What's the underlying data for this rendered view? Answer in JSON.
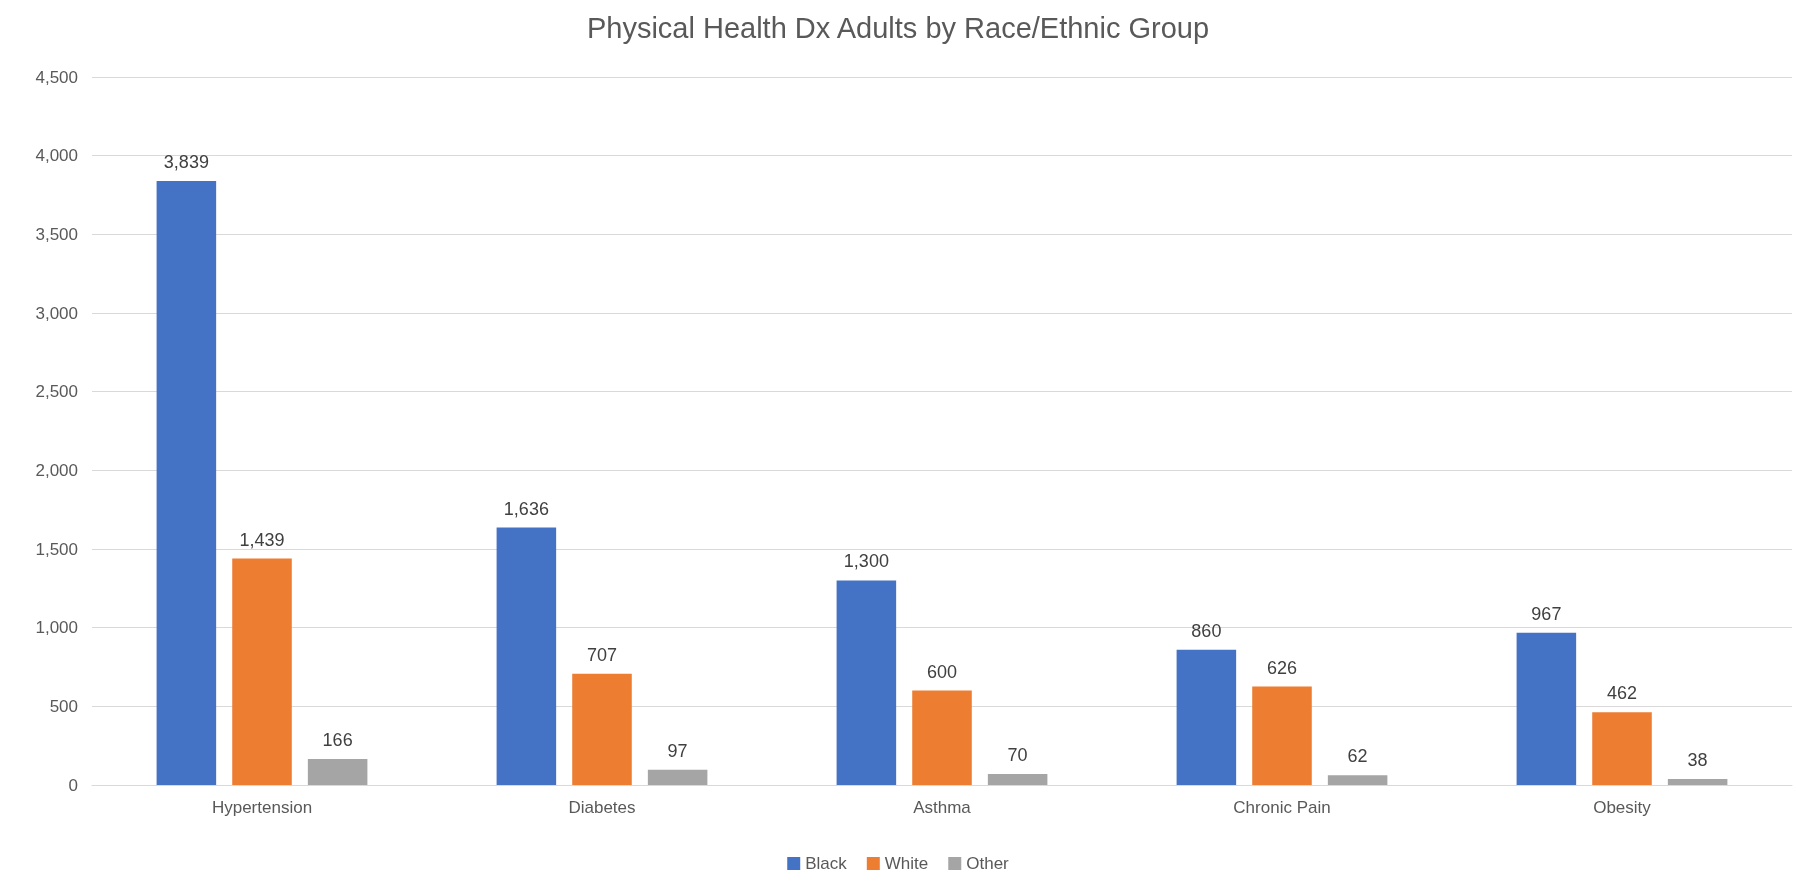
{
  "chart_data": {
    "type": "bar",
    "title": "Physical Health Dx Adults by Race/Ethnic Group",
    "categories": [
      "Hypertension",
      "Diabetes",
      "Asthma",
      "Chronic Pain",
      "Obesity"
    ],
    "series": [
      {
        "name": "Black",
        "color": "#4472c4",
        "values": [
          3839,
          1636,
          1300,
          860,
          967
        ],
        "value_labels": [
          "3,839",
          "1,636",
          "1,300",
          "860",
          "967"
        ]
      },
      {
        "name": "White",
        "color": "#ed7d31",
        "values": [
          1439,
          707,
          600,
          626,
          462
        ],
        "value_labels": [
          "1,439",
          "707",
          "600",
          "626",
          "462"
        ]
      },
      {
        "name": "Other",
        "color": "#a5a5a5",
        "values": [
          166,
          97,
          70,
          62,
          38
        ],
        "value_labels": [
          "166",
          "97",
          "70",
          "62",
          "38"
        ]
      }
    ],
    "ylim": [
      0,
      4500
    ],
    "yticks": [
      0,
      500,
      {
        "value": 1000,
        "label": "1,000"
      },
      {
        "value": 1500,
        "label": "1,500"
      },
      {
        "value": 2000,
        "label": "2,000"
      },
      {
        "value": 2500,
        "label": "2,500"
      },
      {
        "value": 3000,
        "label": "3,000"
      },
      {
        "value": 3500,
        "label": "3,500"
      },
      {
        "value": 4000,
        "label": "4,000"
      },
      {
        "value": 4500,
        "label": "4,500"
      }
    ],
    "grid": "y",
    "legend": "bottom"
  }
}
